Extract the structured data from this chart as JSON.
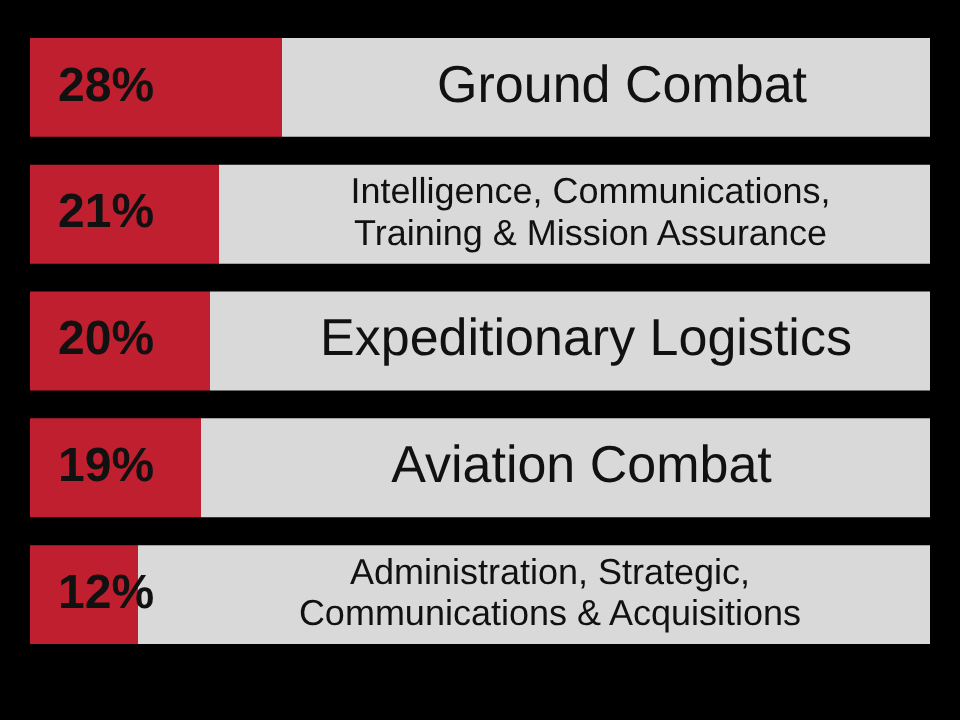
{
  "chart_data": {
    "type": "bar",
    "orientation": "horizontal",
    "stacked": true,
    "tick_labels": false,
    "legend": false,
    "categories": [
      "Ground Combat",
      "Intelligence, Communications, Training & Mission Assurance",
      "Expeditionary Logistics",
      "Aviation Combat",
      "Administration, Strategic, Communications & Acquisitions"
    ],
    "xlim": [
      0,
      100
    ],
    "series": [
      {
        "color": "#c01f2f",
        "values": [
          28,
          21,
          20,
          19,
          12
        ],
        "value_labels": [
          "28%",
          "21%",
          "20%",
          "19%",
          "12%"
        ]
      },
      {
        "color": "#d9d9d9",
        "values": [
          72,
          79,
          80,
          81,
          88
        ]
      }
    ]
  }
}
